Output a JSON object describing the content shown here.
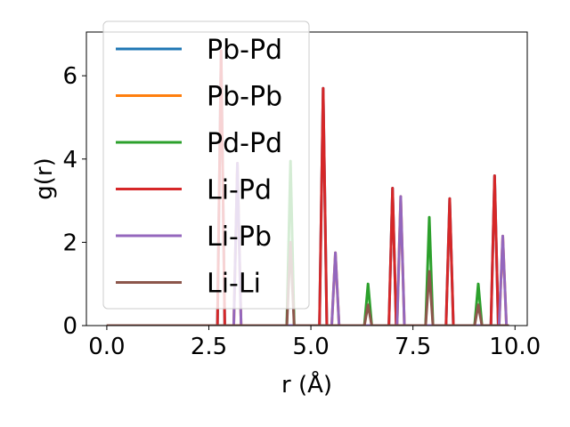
{
  "chart_data": {
    "type": "line",
    "title": "",
    "xlabel": "r (Å)",
    "ylabel": "g(r)",
    "xlim": [
      -0.5,
      10.3
    ],
    "ylim": [
      0,
      7.05
    ],
    "xticks": [
      0.0,
      2.5,
      5.0,
      7.5,
      10.0
    ],
    "xtick_labels": [
      "0.0",
      "2.5",
      "5.0",
      "7.5",
      "10.0"
    ],
    "yticks": [
      0,
      2,
      4,
      6
    ],
    "ytick_labels": [
      "0",
      "2",
      "4",
      "6"
    ],
    "grid": false,
    "legend_position": "upper-left",
    "peak_half_width": 0.09,
    "series": [
      {
        "name": "Pb-Pd",
        "color": "#1f77b4",
        "peaks": [
          [
            2.8,
            6.6
          ],
          [
            5.3,
            5.7
          ],
          [
            7.0,
            3.3
          ],
          [
            8.4,
            3.05
          ],
          [
            9.5,
            3.6
          ]
        ]
      },
      {
        "name": "Pb-Pb",
        "color": "#ff7f0e",
        "peaks": [
          [
            3.2,
            3.9
          ],
          [
            5.6,
            1.75
          ],
          [
            7.2,
            3.1
          ],
          [
            9.7,
            2.15
          ]
        ]
      },
      {
        "name": "Pd-Pd",
        "color": "#2ca02c",
        "peaks": [
          [
            4.5,
            3.95
          ],
          [
            6.4,
            1.0
          ],
          [
            7.9,
            2.6
          ],
          [
            9.1,
            1.0
          ]
        ]
      },
      {
        "name": "Li-Pd",
        "color": "#d62728",
        "peaks": [
          [
            2.8,
            6.6
          ],
          [
            5.3,
            5.7
          ],
          [
            7.0,
            3.3
          ],
          [
            8.4,
            3.05
          ],
          [
            9.5,
            3.6
          ]
        ]
      },
      {
        "name": "Li-Pb",
        "color": "#9467bd",
        "peaks": [
          [
            3.2,
            3.9
          ],
          [
            5.6,
            1.75
          ],
          [
            7.2,
            3.1
          ],
          [
            9.7,
            2.15
          ]
        ]
      },
      {
        "name": "Li-Li",
        "color": "#8c564b",
        "peaks": [
          [
            4.5,
            2.0
          ],
          [
            6.4,
            0.5
          ],
          [
            7.9,
            1.3
          ],
          [
            9.1,
            0.5
          ]
        ]
      }
    ]
  }
}
